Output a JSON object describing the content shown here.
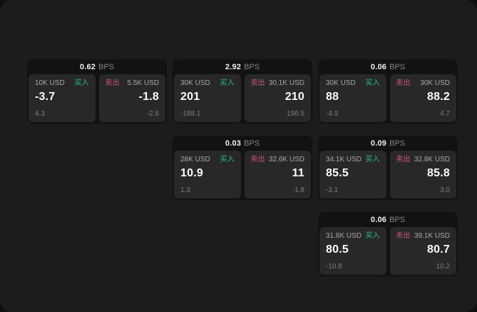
{
  "labels": {
    "buy": "买入",
    "sell": "卖出",
    "bps_unit": "BPS"
  },
  "colors": {
    "page_bg": "#0e0e0f",
    "window_bg": "#1b1c1d",
    "card_bg": "#121214",
    "panel_bg": "#28282a",
    "buy_green": "#2ebd85",
    "sell_red": "#cf566c",
    "value_white": "#fafafa",
    "muted_gray": "#7d7d7d"
  },
  "cards": [
    {
      "bps": "0.62",
      "buy": {
        "amount": "10K USD",
        "value": "-3.7",
        "delta": "4.3"
      },
      "sell": {
        "amount": "5.5K USD",
        "value": "-1.8",
        "delta": "-2.6"
      }
    },
    {
      "bps": "2.92",
      "buy": {
        "amount": "30K USD",
        "value": "201",
        "delta": "-188.1"
      },
      "sell": {
        "amount": "30.1K USD",
        "value": "210",
        "delta": "196.5"
      }
    },
    {
      "bps": "0.06",
      "buy": {
        "amount": "30K USD",
        "value": "88",
        "delta": "-4.9"
      },
      "sell": {
        "amount": "30K USD",
        "value": "88.2",
        "delta": "4.7"
      }
    },
    {
      "bps": "0.03",
      "buy": {
        "amount": "28K USD",
        "value": "10.9",
        "delta": "1.3"
      },
      "sell": {
        "amount": "32.6K USD",
        "value": "11",
        "delta": "-1.8"
      }
    },
    {
      "bps": "0.09",
      "buy": {
        "amount": "34.1K USD",
        "value": "85.5",
        "delta": "-3.1"
      },
      "sell": {
        "amount": "32.8K USD",
        "value": "85.8",
        "delta": "3.0"
      }
    },
    {
      "bps": "0.06",
      "buy": {
        "amount": "31.8K USD",
        "value": "80.5",
        "delta": "-10.8"
      },
      "sell": {
        "amount": "39.1K USD",
        "value": "80.7",
        "delta": "10.2"
      }
    }
  ]
}
